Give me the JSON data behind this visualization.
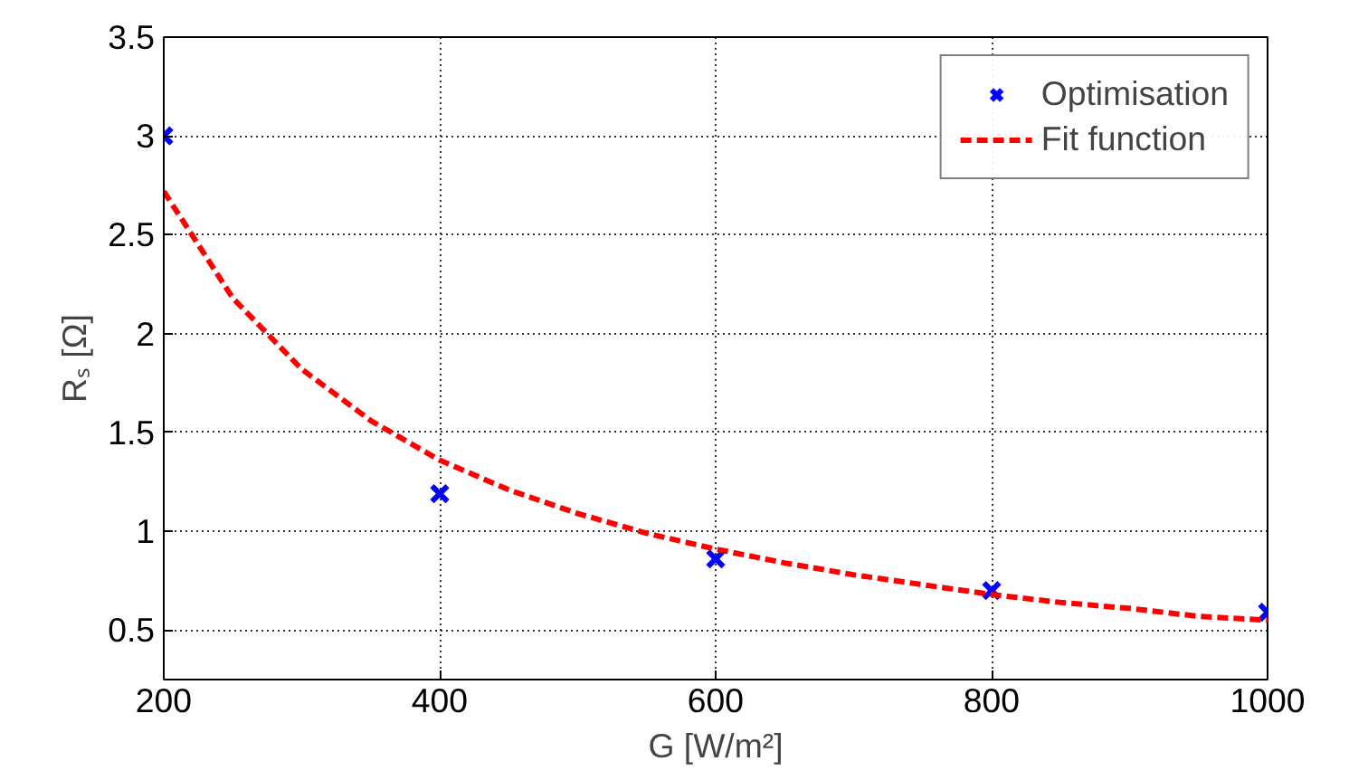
{
  "chart_data": {
    "type": "line",
    "xlabel": "G [W/m²]",
    "ylabel": "Rₛ [Ω]",
    "xlim": [
      200,
      1000
    ],
    "xticks": [
      200,
      400,
      600,
      800,
      1000
    ],
    "ylim": [
      0.25,
      3.5
    ],
    "yticks": [
      0.5,
      1,
      1.5,
      2,
      2.5,
      3,
      3.5
    ],
    "grid": true,
    "legend": "top right",
    "series": [
      {
        "name": "Optimisation",
        "type": "scatter",
        "marker": "cross",
        "color": "#0000ff",
        "x": [
          200,
          400,
          600,
          800,
          1000
        ],
        "values": [
          3.0,
          1.19,
          0.86,
          0.7,
          0.59
        ]
      },
      {
        "name": "Fit function",
        "line_style": "dashed",
        "color": "#ff0000",
        "x": [
          200,
          250,
          300,
          350,
          400,
          450,
          500,
          550,
          600,
          650,
          700,
          750,
          800,
          850,
          900,
          950,
          1000
        ],
        "values": [
          2.72,
          2.18,
          1.82,
          1.56,
          1.36,
          1.21,
          1.09,
          0.99,
          0.91,
          0.84,
          0.78,
          0.73,
          0.68,
          0.64,
          0.61,
          0.57,
          0.55
        ]
      }
    ]
  }
}
